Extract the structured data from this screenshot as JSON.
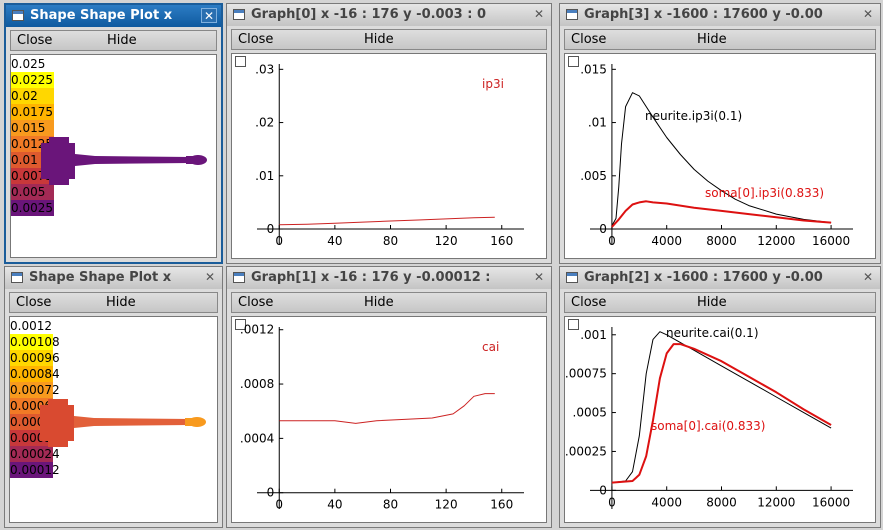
{
  "menu": {
    "close_label": "Close",
    "hide_label": "Hide"
  },
  "shape_windows": [
    {
      "title": "Shape Shape Plot x",
      "close_glyph": "✕",
      "colorbar": [
        {
          "label": "0.025",
          "color": "#ffffff"
        },
        {
          "label": "0.0225",
          "color": "#ffff00"
        },
        {
          "label": "0.02",
          "color": "#ffd700"
        },
        {
          "label": "0.0175",
          "color": "#ffb400"
        },
        {
          "label": "0.015",
          "color": "#f89a1e"
        },
        {
          "label": "0.0125",
          "color": "#f07a26"
        },
        {
          "label": "0.01",
          "color": "#de5a2e"
        },
        {
          "label": "0.0075",
          "color": "#c8383a"
        },
        {
          "label": "0.005",
          "color": "#a32a55"
        },
        {
          "label": "0.0025",
          "color": "#6a157a"
        }
      ],
      "shape_colors": {
        "soma": "#6a157a",
        "neurite": "#6a157a",
        "tip": "#6a157a"
      }
    },
    {
      "title": "Shape Shape Plot x",
      "close_glyph": "✕",
      "colorbar": [
        {
          "label": "0.0012",
          "color": "#ffffff"
        },
        {
          "label": "0.00108",
          "color": "#ffff00"
        },
        {
          "label": "0.00096",
          "color": "#ffd700"
        },
        {
          "label": "0.00084",
          "color": "#ffb400"
        },
        {
          "label": "0.00072",
          "color": "#f89a1e"
        },
        {
          "label": "0.0006",
          "color": "#f07a26"
        },
        {
          "label": "0.00048",
          "color": "#de5a2e"
        },
        {
          "label": "0.00036",
          "color": "#c8383a"
        },
        {
          "label": "0.00024",
          "color": "#a32a55"
        },
        {
          "label": "0.00012",
          "color": "#6a157a"
        }
      ],
      "shape_colors": {
        "soma": "#d94a30",
        "neurite": "#e2603a",
        "tip": "#f89a1e"
      }
    }
  ],
  "graphs": [
    {
      "title": "Graph[0]  x -16 : 176  y -0.003 : 0",
      "close_glyph": "✕",
      "chart_data": {
        "type": "line",
        "xlim": [
          -16,
          176
        ],
        "ylim": [
          -0.003,
          0.031
        ],
        "x_ticks": [
          "0",
          "40",
          "80",
          "120",
          "160"
        ],
        "x_tick_values": [
          0,
          40,
          80,
          120,
          160
        ],
        "y_ticks": [
          ".03",
          ".02",
          ".01",
          "0"
        ],
        "y_tick_values": [
          0.03,
          0.02,
          0.01,
          0
        ],
        "series": [
          {
            "name": "ip3i",
            "color": "#cc2222",
            "width": 1,
            "x": [
              0,
              20,
              40,
              60,
              80,
              100,
              120,
              140,
              155
            ],
            "y": [
              0.0008,
              0.0009,
              0.0011,
              0.0013,
              0.0015,
              0.0017,
              0.0019,
              0.0021,
              0.0022
            ]
          }
        ]
      }
    },
    {
      "title": "Graph[3]  x -1600 : 17600  y -0.00",
      "close_glyph": "✕",
      "chart_data": {
        "type": "line",
        "xlim": [
          -1600,
          17600
        ],
        "ylim": [
          -0.0015,
          0.0155
        ],
        "x_ticks": [
          "0",
          "4000",
          "8000",
          "12000",
          "16000"
        ],
        "x_tick_values": [
          0,
          4000,
          8000,
          12000,
          16000
        ],
        "y_ticks": [
          ".015",
          ".01",
          ".005",
          "0"
        ],
        "y_tick_values": [
          0.015,
          0.01,
          0.005,
          0
        ],
        "series": [
          {
            "name": "neurite.ip3i(0.1)",
            "color": "#000000",
            "width": 1,
            "x": [
              0,
              300,
              500,
              700,
              1000,
              1500,
              2000,
              2500,
              3000,
              4000,
              5000,
              6000,
              7000,
              8000,
              9000,
              10000,
              12000,
              14000,
              16000
            ],
            "y": [
              0.0003,
              0.001,
              0.004,
              0.008,
              0.0115,
              0.0128,
              0.0125,
              0.0115,
              0.0105,
              0.0086,
              0.007,
              0.0056,
              0.0045,
              0.0036,
              0.0028,
              0.0022,
              0.0014,
              0.0009,
              0.0006
            ]
          },
          {
            "name": "soma[0].ip3i(0.833)",
            "color": "#dd1111",
            "width": 2,
            "x": [
              0,
              500,
              1000,
              1500,
              2000,
              2500,
              3000,
              4000,
              5000,
              6000,
              8000,
              10000,
              12000,
              14000,
              16000
            ],
            "y": [
              0.0002,
              0.0009,
              0.0017,
              0.0023,
              0.0025,
              0.0026,
              0.0025,
              0.0024,
              0.0022,
              0.002,
              0.0017,
              0.0014,
              0.0011,
              0.0008,
              0.0006
            ]
          }
        ]
      }
    },
    {
      "title": "Graph[1]  x -16 : 176  y -0.00012 :",
      "close_glyph": "✕",
      "chart_data": {
        "type": "line",
        "xlim": [
          -16,
          176
        ],
        "ylim": [
          -0.00012,
          0.00122
        ],
        "x_ticks": [
          "0",
          "40",
          "80",
          "120",
          "160"
        ],
        "x_tick_values": [
          0,
          40,
          80,
          120,
          160
        ],
        "y_ticks": [
          ".0012",
          ".0008",
          ".0004",
          "0"
        ],
        "y_tick_values": [
          0.0012,
          0.0008,
          0.0004,
          0
        ],
        "series": [
          {
            "name": "cai",
            "color": "#cc2222",
            "width": 1,
            "x": [
              0,
              20,
              40,
              55,
              70,
              90,
              110,
              125,
              133,
              140,
              148,
              155
            ],
            "y": [
              0.00053,
              0.00053,
              0.00053,
              0.00051,
              0.00053,
              0.00054,
              0.00055,
              0.00058,
              0.00064,
              0.00071,
              0.00073,
              0.00073
            ]
          }
        ]
      }
    },
    {
      "title": "Graph[2]  x -1600 : 17600  y -0.00",
      "close_glyph": "✕",
      "chart_data": {
        "type": "line",
        "xlim": [
          -1600,
          17600
        ],
        "ylim": [
          -0.00012,
          0.00105
        ],
        "x_ticks": [
          "0",
          "4000",
          "8000",
          "12000",
          "16000"
        ],
        "x_tick_values": [
          0,
          4000,
          8000,
          12000,
          16000
        ],
        "y_ticks": [
          ".001",
          ".00075",
          ".0005",
          ".00025",
          "0"
        ],
        "y_tick_values": [
          0.001,
          0.00075,
          0.0005,
          0.00025,
          0
        ],
        "series": [
          {
            "name": "neurite.cai(0.1)",
            "color": "#000000",
            "width": 1,
            "x": [
              0,
              1000,
              1500,
              2000,
              2500,
              3000,
              3500,
              4000,
              5000,
              6000,
              8000,
              10000,
              12000,
              14000,
              16000
            ],
            "y": [
              5e-05,
              6e-05,
              0.00012,
              0.00035,
              0.00075,
              0.00097,
              0.00102,
              0.001,
              0.00095,
              0.0009,
              0.0008,
              0.0007,
              0.0006,
              0.0005,
              0.0004
            ]
          },
          {
            "name": "soma[0].cai(0.833)",
            "color": "#dd1111",
            "width": 2,
            "x": [
              0,
              1500,
              2000,
              2500,
              3000,
              3500,
              4000,
              4500,
              5000,
              6000,
              8000,
              10000,
              12000,
              14000,
              16000
            ],
            "y": [
              5e-05,
              6e-05,
              0.0001,
              0.00022,
              0.00045,
              0.00072,
              0.00088,
              0.00094,
              0.00094,
              0.00091,
              0.00083,
              0.00073,
              0.00063,
              0.00052,
              0.00042
            ]
          }
        ]
      }
    }
  ]
}
